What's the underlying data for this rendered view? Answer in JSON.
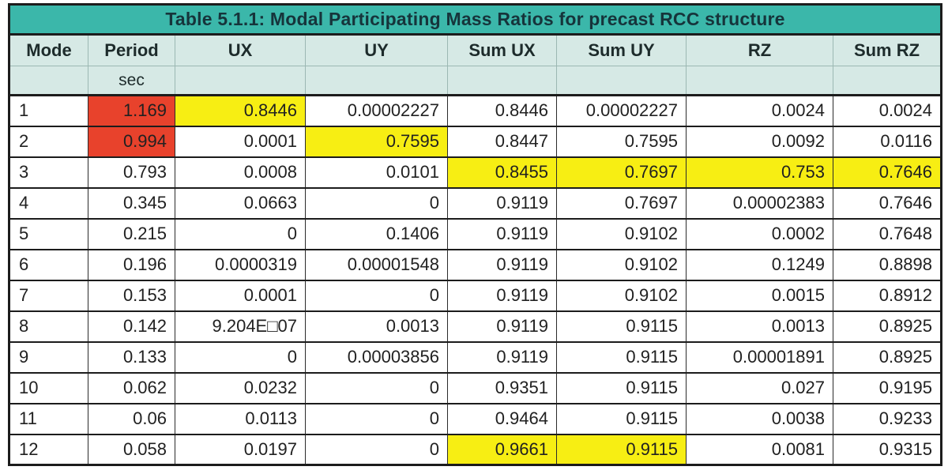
{
  "colors": {
    "title_bg": "#3bb7aa",
    "header_bg": "#d6e9e5",
    "highlight_red": "#e8422c",
    "highlight_yellow": "#f7ee13",
    "border": "#1c1c1c",
    "text": "#212121"
  },
  "table": {
    "title": "Table 5.1.1: Modal Participating Mass Ratios for precast RCC structure",
    "columns": [
      "Mode",
      "Period",
      "UX",
      "UY",
      "Sum UX",
      "Sum UY",
      "RZ",
      "Sum RZ"
    ],
    "units": [
      "",
      "sec",
      "",
      "",
      "",
      "",
      "",
      ""
    ],
    "rows": [
      {
        "cells": [
          "1",
          "1.169",
          "0.8446",
          "0.00002227",
          "0.8446",
          "0.00002227",
          "0.0024",
          "0.0024"
        ],
        "highlights": {
          "1": "red",
          "2": "yellow"
        }
      },
      {
        "cells": [
          "2",
          "0.994",
          "0.0001",
          "0.7595",
          "0.8447",
          "0.7595",
          "0.0092",
          "0.0116"
        ],
        "highlights": {
          "1": "red",
          "3": "yellow"
        }
      },
      {
        "cells": [
          "3",
          "0.793",
          "0.0008",
          "0.0101",
          "0.8455",
          "0.7697",
          "0.753",
          "0.7646"
        ],
        "highlights": {
          "4": "yellow",
          "5": "yellow",
          "6": "yellow",
          "7": "yellow"
        }
      },
      {
        "cells": [
          "4",
          "0.345",
          "0.0663",
          "0",
          "0.9119",
          "0.7697",
          "0.00002383",
          "0.7646"
        ],
        "highlights": {}
      },
      {
        "cells": [
          "5",
          "0.215",
          "0",
          "0.1406",
          "0.9119",
          "0.9102",
          "0.0002",
          "0.7648"
        ],
        "highlights": {}
      },
      {
        "cells": [
          "6",
          "0.196",
          "0.0000319",
          "0.00001548",
          "0.9119",
          "0.9102",
          "0.1249",
          "0.8898"
        ],
        "highlights": {}
      },
      {
        "cells": [
          "7",
          "0.153",
          "0.0001",
          "0",
          "0.9119",
          "0.9102",
          "0.0015",
          "0.8912"
        ],
        "highlights": {}
      },
      {
        "cells": [
          "8",
          "0.142",
          "9.204E□07",
          "0.0013",
          "0.9119",
          "0.9115",
          "0.0013",
          "0.8925"
        ],
        "highlights": {}
      },
      {
        "cells": [
          "9",
          "0.133",
          "0",
          "0.00003856",
          "0.9119",
          "0.9115",
          "0.00001891",
          "0.8925"
        ],
        "highlights": {}
      },
      {
        "cells": [
          "10",
          "0.062",
          "0.0232",
          "0",
          "0.9351",
          "0.9115",
          "0.027",
          "0.9195"
        ],
        "highlights": {}
      },
      {
        "cells": [
          "11",
          "0.06",
          "0.0113",
          "0",
          "0.9464",
          "0.9115",
          "0.0038",
          "0.9233"
        ],
        "highlights": {}
      },
      {
        "cells": [
          "12",
          "0.058",
          "0.0197",
          "0",
          "0.9661",
          "0.9115",
          "0.0081",
          "0.9315"
        ],
        "highlights": {
          "4": "yellow",
          "5": "yellow"
        }
      }
    ]
  }
}
